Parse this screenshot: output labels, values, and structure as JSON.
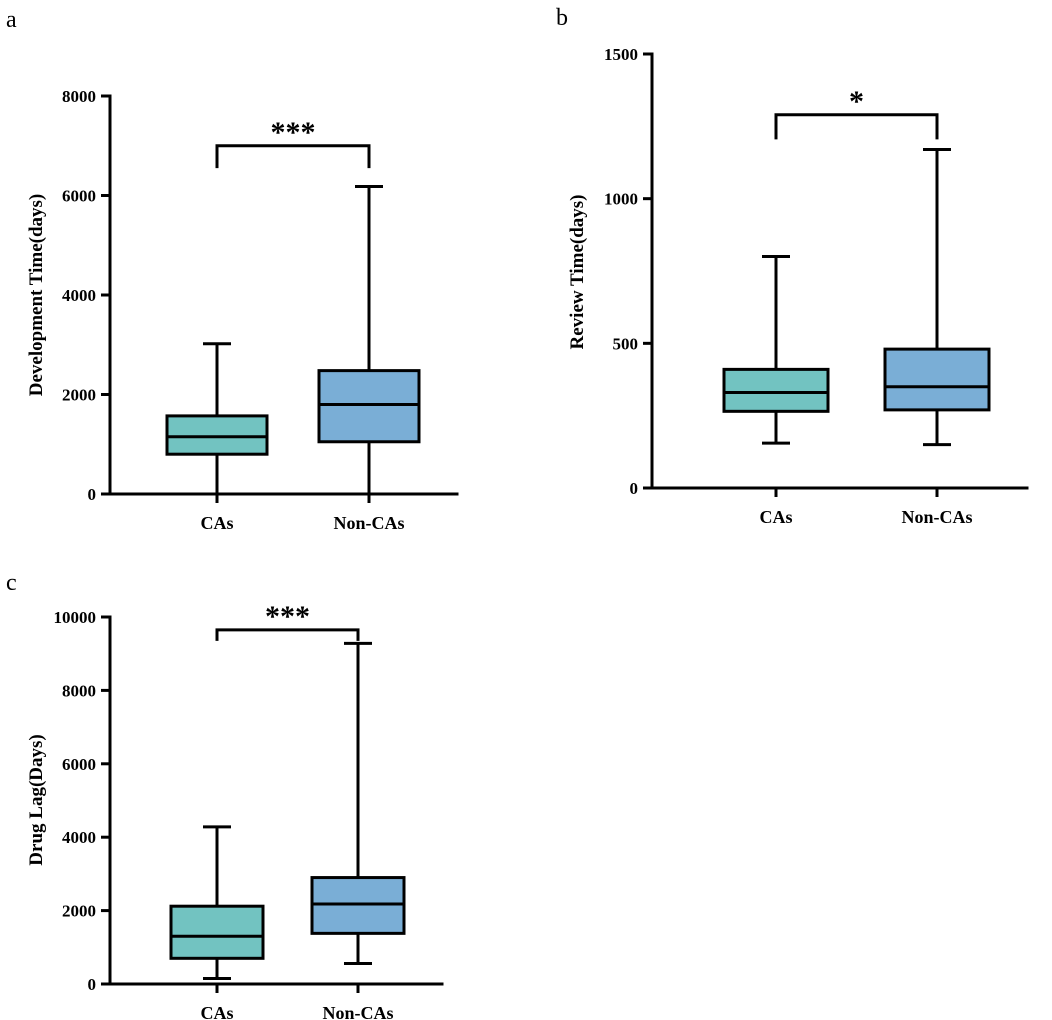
{
  "colors": {
    "cas_fill": "#72c3c1",
    "non_cas_fill": "#7aaed6",
    "stroke": "#000000"
  },
  "chart_data": [
    {
      "id": "a",
      "type": "boxplot",
      "panel_label": "a",
      "title": "",
      "xlabel": "",
      "ylabel": "Development Time(days)",
      "ylim": [
        0,
        8000
      ],
      "yticks": [
        0,
        2000,
        4000,
        6000,
        8000
      ],
      "categories": [
        "CAs",
        "Non-CAs"
      ],
      "boxes": [
        {
          "name": "CAs",
          "min": 0,
          "q1": 800,
          "median": 1150,
          "q3": 1570,
          "max": 3020
        },
        {
          "name": "Non-CAs",
          "min": 0,
          "q1": 1050,
          "median": 1800,
          "q3": 2480,
          "max": 6180
        }
      ],
      "significance": {
        "label": "***",
        "bar_y": 7000,
        "tick_bottom": 6550
      }
    },
    {
      "id": "b",
      "type": "boxplot",
      "panel_label": "b",
      "title": "",
      "xlabel": "",
      "ylabel": "Review Time(days)",
      "ylim": [
        0,
        1500
      ],
      "yticks": [
        0,
        500,
        1000,
        1500
      ],
      "categories": [
        "CAs",
        "Non-CAs"
      ],
      "boxes": [
        {
          "name": "CAs",
          "min": 155,
          "q1": 265,
          "median": 330,
          "q3": 410,
          "max": 800
        },
        {
          "name": "Non-CAs",
          "min": 150,
          "q1": 270,
          "median": 350,
          "q3": 480,
          "max": 1170
        }
      ],
      "significance": {
        "label": "*",
        "bar_y": 1290,
        "tick_bottom": 1205
      }
    },
    {
      "id": "c",
      "type": "boxplot",
      "panel_label": "c",
      "title": "",
      "xlabel": "",
      "ylabel": "Drug Lag(Days)",
      "ylim": [
        0,
        10000
      ],
      "yticks": [
        0,
        2000,
        4000,
        6000,
        8000,
        10000
      ],
      "categories": [
        "CAs",
        "Non-CAs"
      ],
      "boxes": [
        {
          "name": "CAs",
          "min": 150,
          "q1": 700,
          "median": 1300,
          "q3": 2120,
          "max": 4280
        },
        {
          "name": "Non-CAs",
          "min": 560,
          "q1": 1380,
          "median": 2180,
          "q3": 2900,
          "max": 9280
        }
      ],
      "significance": {
        "label": "***",
        "bar_y": 9650,
        "tick_bottom": 9350
      }
    }
  ]
}
